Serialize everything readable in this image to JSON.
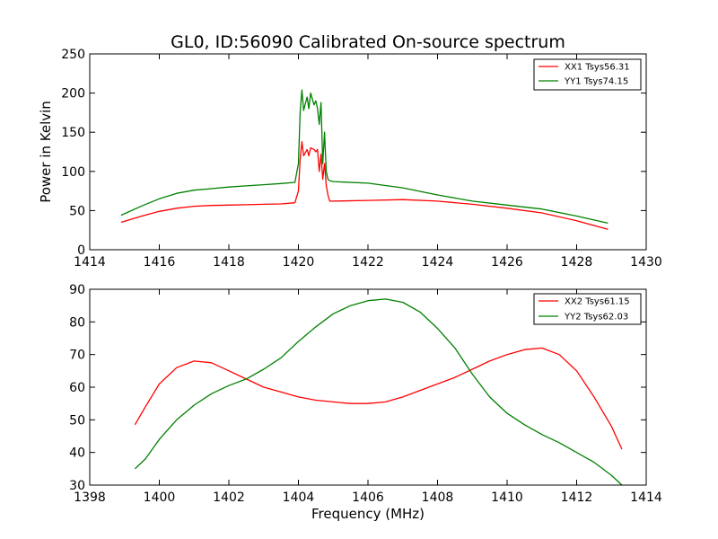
{
  "chart_data": [
    {
      "type": "line",
      "title": "GL0, ID:56090 Calibrated On-source spectrum",
      "xlabel": "",
      "ylabel": "Power in Kelvin",
      "xlim": [
        1414,
        1430
      ],
      "ylim": [
        0,
        250
      ],
      "xticks": [
        1414,
        1416,
        1418,
        1420,
        1422,
        1424,
        1426,
        1428,
        1430
      ],
      "yticks": [
        0,
        50,
        100,
        150,
        200,
        250
      ],
      "legend_position": "top-right",
      "grid": false,
      "series": [
        {
          "name": "XX1 Tsys56.31",
          "color": "#ff0000",
          "x": [
            1414.9,
            1415.5,
            1416,
            1416.5,
            1417,
            1417.5,
            1418,
            1418.5,
            1419,
            1419.5,
            1419.9,
            1420.0,
            1420.05,
            1420.1,
            1420.15,
            1420.25,
            1420.3,
            1420.35,
            1420.45,
            1420.5,
            1420.55,
            1420.6,
            1420.65,
            1420.7,
            1420.75,
            1420.8,
            1420.85,
            1420.9,
            1421,
            1422,
            1423,
            1424,
            1425,
            1426,
            1427,
            1428,
            1428.9
          ],
          "y": [
            35,
            43,
            49,
            53,
            55.5,
            56.5,
            57,
            57.5,
            58,
            58.5,
            60,
            75,
            115,
            138,
            120,
            128,
            120,
            130,
            128,
            125,
            128,
            100,
            122,
            90,
            110,
            82,
            70,
            62,
            62,
            63,
            64,
            62,
            58,
            53,
            47,
            37,
            26
          ]
        },
        {
          "name": "YY1 Tsys74.15",
          "color": "#008000",
          "x": [
            1414.9,
            1415.5,
            1416,
            1416.5,
            1417,
            1417.5,
            1418,
            1418.5,
            1419,
            1419.5,
            1419.9,
            1420.0,
            1420.05,
            1420.1,
            1420.15,
            1420.25,
            1420.3,
            1420.35,
            1420.45,
            1420.5,
            1420.55,
            1420.6,
            1420.65,
            1420.7,
            1420.75,
            1420.8,
            1420.85,
            1420.9,
            1421,
            1422,
            1423,
            1424,
            1425,
            1426,
            1427,
            1428,
            1428.9
          ],
          "y": [
            44,
            56,
            65,
            72,
            76,
            78,
            80,
            81.5,
            83,
            84.5,
            86,
            110,
            175,
            204,
            178,
            195,
            180,
            200,
            185,
            190,
            180,
            160,
            188,
            110,
            150,
            100,
            90,
            88,
            87,
            85,
            79,
            70,
            62,
            57,
            52,
            43,
            34
          ]
        }
      ]
    },
    {
      "type": "line",
      "title": "",
      "xlabel": "Frequency (MHz)",
      "ylabel": "",
      "xlim": [
        1398,
        1414
      ],
      "ylim": [
        30,
        90
      ],
      "xticks": [
        1398,
        1400,
        1402,
        1404,
        1406,
        1408,
        1410,
        1412,
        1414
      ],
      "yticks": [
        30,
        40,
        50,
        60,
        70,
        80,
        90
      ],
      "legend_position": "top-right",
      "grid": false,
      "series": [
        {
          "name": "XX2 Tsys61.15",
          "color": "#ff0000",
          "x": [
            1399.3,
            1399.6,
            1400,
            1400.5,
            1401,
            1401.5,
            1402,
            1402.5,
            1403,
            1403.5,
            1404,
            1404.5,
            1405,
            1405.5,
            1406,
            1406.5,
            1407,
            1407.5,
            1408,
            1408.5,
            1409,
            1409.5,
            1410,
            1410.5,
            1411,
            1411.5,
            1412,
            1412.5,
            1413,
            1413.3
          ],
          "y": [
            48.5,
            54,
            61,
            66,
            68,
            67.5,
            65,
            62.5,
            60,
            58.5,
            57,
            56,
            55.5,
            55,
            55,
            55.5,
            57,
            59,
            61,
            63,
            65.5,
            68,
            70,
            71.5,
            72,
            70,
            65,
            57,
            48,
            41
          ]
        },
        {
          "name": "YY2 Tsys62.03",
          "color": "#008000",
          "x": [
            1399.3,
            1399.6,
            1400,
            1400.5,
            1401,
            1401.5,
            1402,
            1402.5,
            1403,
            1403.5,
            1404,
            1404.5,
            1405,
            1405.5,
            1406,
            1406.5,
            1407,
            1407.5,
            1408,
            1408.5,
            1409,
            1409.5,
            1410,
            1410.5,
            1411,
            1411.5,
            1412,
            1412.5,
            1413,
            1413.3
          ],
          "y": [
            35,
            38,
            44,
            50,
            54.5,
            58,
            60.5,
            62.5,
            65.5,
            69,
            74,
            78.5,
            82.5,
            85,
            86.5,
            87,
            86,
            83,
            78,
            72,
            64,
            57,
            52,
            48.5,
            45.5,
            43,
            40,
            37,
            33,
            30
          ]
        }
      ]
    }
  ]
}
